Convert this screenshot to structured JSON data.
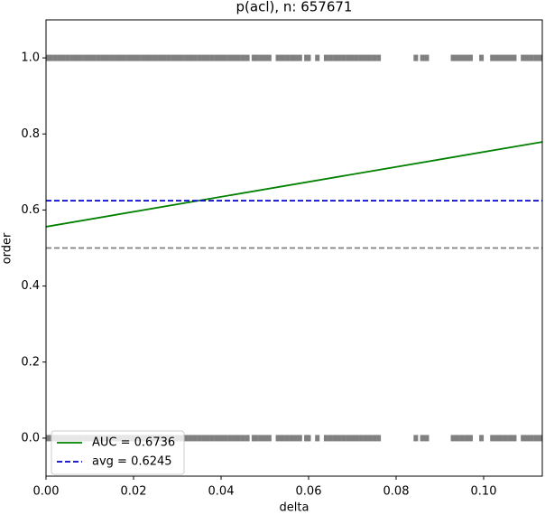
{
  "chart_data": {
    "type": "scatter",
    "title": "p(acl), n: 657671",
    "x_label": "delta",
    "y_label": "order",
    "xlim": [
      0,
      0.1134
    ],
    "ylim": [
      -0.1,
      1.1
    ],
    "xticks": [
      {
        "value": 0,
        "label": "0.00"
      },
      {
        "value": 0.02,
        "label": "0.02"
      },
      {
        "value": 0.04,
        "label": "0.04"
      },
      {
        "value": 0.06,
        "label": "0.06"
      },
      {
        "value": 0.08,
        "label": "0.08"
      },
      {
        "value": 0.1,
        "label": "0.10"
      }
    ],
    "yticks": [
      {
        "value": 0,
        "label": "0.0"
      },
      {
        "value": 0.2,
        "label": "0.2"
      },
      {
        "value": 0.4,
        "label": "0.4"
      },
      {
        "value": 0.6,
        "label": "0.6"
      },
      {
        "value": 0.8,
        "label": "0.8"
      },
      {
        "value": 1,
        "label": "1.0"
      }
    ],
    "legend": "lower left",
    "series": [
      {
        "color": "#808080",
        "x": [
          0,
          0.001,
          0.002,
          0.003,
          0.004,
          0.005,
          0.006,
          0.007,
          0.008,
          0.009,
          0.01,
          0.011,
          0.012,
          0.013,
          0.014,
          0.015,
          0.016,
          0.017,
          0.018,
          0.019,
          0.02,
          0.021,
          0.022,
          0.023,
          0.024,
          0.025,
          0.026,
          0.027,
          0.028,
          0.029,
          0.03,
          0.031,
          0.032,
          0.033,
          0.034,
          0.035,
          0.036,
          0.037,
          0.038,
          0.039,
          0.04,
          0.041,
          0.042,
          0.043,
          0.044,
          0.045,
          0.046,
          0.0475,
          0.048,
          0.049,
          0.05,
          0.051,
          0.053,
          0.054,
          0.055,
          0.056,
          0.057,
          0.058,
          0.0595,
          0.06,
          0.062,
          0.064,
          0.065,
          0.066,
          0.067,
          0.068,
          0.069,
          0.07,
          0.071,
          0.072,
          0.073,
          0.074,
          0.075,
          0.076,
          0.0845,
          0.086,
          0.087,
          0.093,
          0.094,
          0.095,
          0.096,
          0.097,
          0.0995,
          0.102,
          0.103,
          0.104,
          0.105,
          0.106,
          0.107,
          0.109,
          0.11,
          0.111,
          0.112,
          0.113
        ],
        "values": [
          1,
          1,
          1,
          1,
          1,
          1,
          1,
          1,
          1,
          1,
          1,
          1,
          1,
          1,
          1,
          1,
          1,
          1,
          1,
          1,
          1,
          1,
          1,
          1,
          1,
          1,
          1,
          1,
          1,
          1,
          1,
          1,
          1,
          1,
          1,
          1,
          1,
          1,
          1,
          1,
          1,
          1,
          1,
          1,
          1,
          1,
          1,
          1,
          1,
          1,
          1,
          1,
          1,
          1,
          1,
          1,
          1,
          1,
          1,
          1,
          1,
          1,
          1,
          1,
          1,
          1,
          1,
          1,
          1,
          1,
          1,
          1,
          1,
          1,
          1,
          1,
          1,
          1,
          1,
          1,
          1,
          1,
          1,
          1,
          1,
          1,
          1,
          1,
          1,
          1,
          1,
          1,
          1,
          1
        ]
      },
      {
        "color": "#808080",
        "x": [
          0,
          0.001,
          0.002,
          0.003,
          0.004,
          0.005,
          0.006,
          0.007,
          0.008,
          0.009,
          0.01,
          0.011,
          0.012,
          0.013,
          0.014,
          0.015,
          0.016,
          0.017,
          0.018,
          0.019,
          0.02,
          0.021,
          0.022,
          0.023,
          0.024,
          0.025,
          0.026,
          0.027,
          0.028,
          0.029,
          0.03,
          0.031,
          0.032,
          0.033,
          0.034,
          0.035,
          0.036,
          0.037,
          0.038,
          0.039,
          0.04,
          0.041,
          0.042,
          0.043,
          0.044,
          0.045,
          0.046,
          0.0475,
          0.048,
          0.049,
          0.05,
          0.051,
          0.053,
          0.054,
          0.055,
          0.056,
          0.057,
          0.058,
          0.0595,
          0.06,
          0.062,
          0.064,
          0.065,
          0.066,
          0.067,
          0.068,
          0.069,
          0.07,
          0.071,
          0.072,
          0.073,
          0.074,
          0.075,
          0.076,
          0.0845,
          0.086,
          0.087,
          0.093,
          0.094,
          0.095,
          0.096,
          0.097,
          0.0995,
          0.102,
          0.103,
          0.104,
          0.105,
          0.106,
          0.107,
          0.109,
          0.11,
          0.111,
          0.112,
          0.113
        ],
        "values": [
          0,
          0,
          0,
          0,
          0,
          0,
          0,
          0,
          0,
          0,
          0,
          0,
          0,
          0,
          0,
          0,
          0,
          0,
          0,
          0,
          0,
          0,
          0,
          0,
          0,
          0,
          0,
          0,
          0,
          0,
          0,
          0,
          0,
          0,
          0,
          0,
          0,
          0,
          0,
          0,
          0,
          0,
          0,
          0,
          0,
          0,
          0,
          0,
          0,
          0,
          0,
          0,
          0,
          0,
          0,
          0,
          0,
          0,
          0,
          0,
          0,
          0,
          0,
          0,
          0,
          0,
          0,
          0,
          0,
          0,
          0,
          0,
          0,
          0,
          0,
          0,
          0,
          0,
          0,
          0,
          0,
          0,
          0,
          0,
          0,
          0,
          0,
          0,
          0,
          0,
          0,
          0,
          0,
          0
        ]
      },
      {
        "type": "line",
        "name": "AUC = 0.6736",
        "color": "#008000",
        "x": [
          0,
          0.1134
        ],
        "values": [
          0.556,
          0.779
        ]
      },
      {
        "type": "line",
        "name": "avg = 0.6245",
        "color": "#0000cc",
        "dashed": true,
        "x": [
          0,
          0.1134
        ],
        "values": [
          0.6245,
          0.6245
        ]
      },
      {
        "type": "line",
        "color": "#808080",
        "dashed": true,
        "x": [
          0,
          0.1134
        ],
        "values": [
          0.5,
          0.5
        ]
      }
    ]
  }
}
